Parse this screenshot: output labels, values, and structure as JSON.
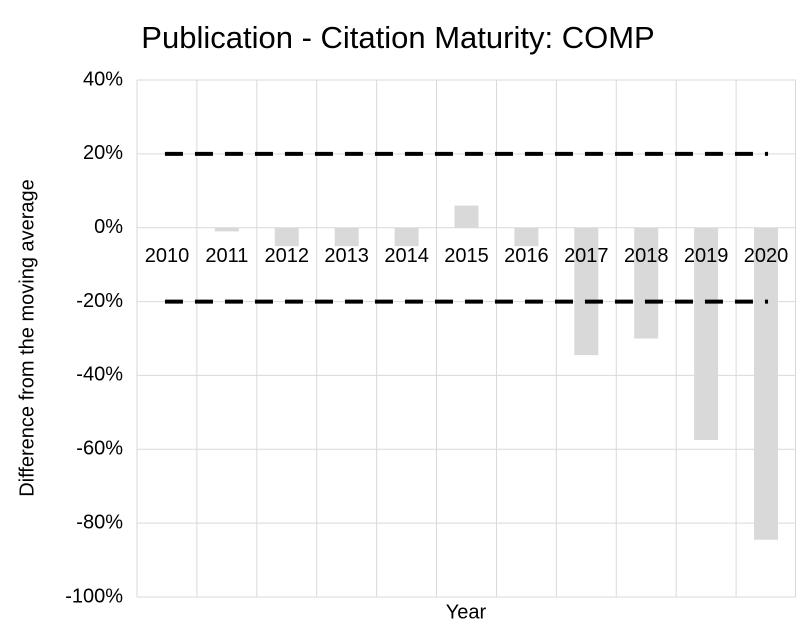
{
  "chart_data": {
    "type": "bar",
    "title": "Publication - Citation Maturity: COMP",
    "x_label": "Year",
    "y_label": "Difference from the moving average",
    "categories": [
      "2010",
      "2011",
      "2012",
      "2013",
      "2014",
      "2015",
      "2016",
      "2017",
      "2018",
      "2019",
      "2020"
    ],
    "values": [
      0,
      -1,
      -5,
      -5,
      -5,
      6,
      -5,
      -34.5,
      -30,
      -57.5,
      -84.5
    ],
    "color": "#d9d9d9",
    "thresholds": [
      20,
      -20
    ],
    "threshold_color": "#000000",
    "ylim": [
      -100,
      40
    ],
    "yticks": [
      {
        "value": -100,
        "label": "-100%"
      },
      {
        "value": -80,
        "label": "-80%"
      },
      {
        "value": -60,
        "label": "-60%"
      },
      {
        "value": -40,
        "label": "-40%"
      },
      {
        "value": -20,
        "label": "-20%"
      },
      {
        "value": 0,
        "label": "0%"
      },
      {
        "value": 20,
        "label": "20%"
      },
      {
        "value": 40,
        "label": "40%"
      }
    ],
    "grid": true
  }
}
